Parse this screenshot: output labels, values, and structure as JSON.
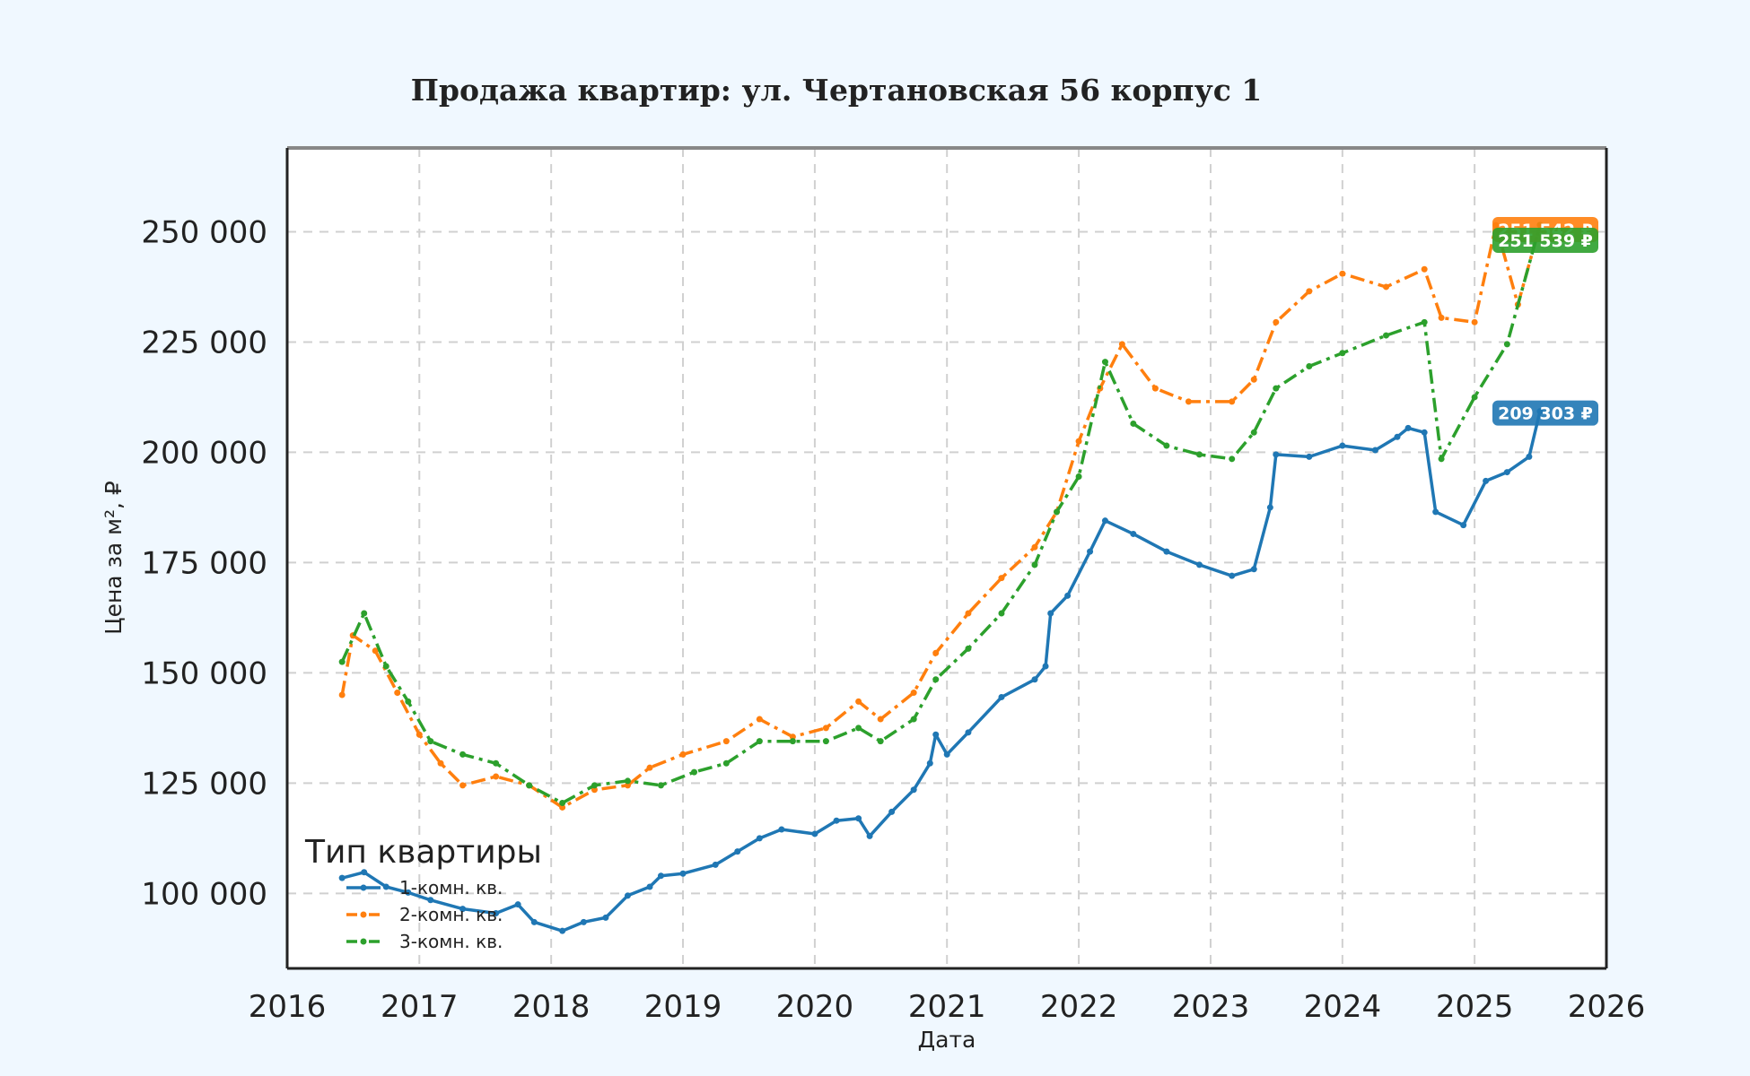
{
  "chart_data": {
    "type": "line",
    "title": "Продажа квартир: ул. Чертановская 56 корпус 1",
    "xlabel": "Дата",
    "ylabel": "Цена за м², ₽",
    "xlim": [
      "2016-01-01",
      "2026-01-01"
    ],
    "ylim": [
      83000,
      269000
    ],
    "x_ticks": [
      "2016",
      "2017",
      "2018",
      "2019",
      "2020",
      "2021",
      "2022",
      "2023",
      "2024",
      "2025",
      "2026"
    ],
    "y_ticks": [
      100000,
      125000,
      150000,
      175000,
      200000,
      225000,
      250000
    ],
    "y_tick_labels": [
      "100 000",
      "125 000",
      "150 000",
      "175 000",
      "200 000",
      "225 000",
      "250 000"
    ],
    "grid": true,
    "legend": {
      "title": "Тип квартиры",
      "placement": "bottom-left"
    },
    "series": [
      {
        "name": "1-комн. кв.",
        "color": "#1f77b4",
        "style": "solid",
        "last_label": "209 303 ₽",
        "points": [
          [
            "2016-06-01",
            103500
          ],
          [
            "2016-08-01",
            104800
          ],
          [
            "2016-10-01",
            101500
          ],
          [
            "2016-12-01",
            100200
          ],
          [
            "2017-02-01",
            98500
          ],
          [
            "2017-05-01",
            96500
          ],
          [
            "2017-08-01",
            95500
          ],
          [
            "2017-10-01",
            97500
          ],
          [
            "2017-11-15",
            93500
          ],
          [
            "2018-02-01",
            91500
          ],
          [
            "2018-04-01",
            93500
          ],
          [
            "2018-06-01",
            94500
          ],
          [
            "2018-08-01",
            99500
          ],
          [
            "2018-10-01",
            101500
          ],
          [
            "2018-11-01",
            104000
          ],
          [
            "2019-01-01",
            104500
          ],
          [
            "2019-04-01",
            106500
          ],
          [
            "2019-06-01",
            109500
          ],
          [
            "2019-08-01",
            112500
          ],
          [
            "2019-10-01",
            114500
          ],
          [
            "2020-01-01",
            113500
          ],
          [
            "2020-03-01",
            116500
          ],
          [
            "2020-05-01",
            117000
          ],
          [
            "2020-06-01",
            113000
          ],
          [
            "2020-08-01",
            118500
          ],
          [
            "2020-10-01",
            123500
          ],
          [
            "2020-11-15",
            129500
          ],
          [
            "2020-12-01",
            136000
          ],
          [
            "2021-01-01",
            131500
          ],
          [
            "2021-03-01",
            136500
          ],
          [
            "2021-06-01",
            144500
          ],
          [
            "2021-09-01",
            148500
          ],
          [
            "2021-10-01",
            151500
          ],
          [
            "2021-10-15",
            163500
          ],
          [
            "2021-12-01",
            167500
          ],
          [
            "2022-02-01",
            177500
          ],
          [
            "2022-03-15",
            184500
          ],
          [
            "2022-06-01",
            181500
          ],
          [
            "2022-09-01",
            177500
          ],
          [
            "2022-12-01",
            174500
          ],
          [
            "2023-03-01",
            172000
          ],
          [
            "2023-05-01",
            173500
          ],
          [
            "2023-06-15",
            187500
          ],
          [
            "2023-07-01",
            199500
          ],
          [
            "2023-10-01",
            199000
          ],
          [
            "2024-01-01",
            201500
          ],
          [
            "2024-04-01",
            200500
          ],
          [
            "2024-06-01",
            203500
          ],
          [
            "2024-07-01",
            205500
          ],
          [
            "2024-08-15",
            204500
          ],
          [
            "2024-09-15",
            186500
          ],
          [
            "2024-12-01",
            183500
          ],
          [
            "2025-02-01",
            193500
          ],
          [
            "2025-04-01",
            195500
          ],
          [
            "2025-06-01",
            199000
          ],
          [
            "2025-07-01",
            209303
          ]
        ]
      },
      {
        "name": "2-комн. кв.",
        "color": "#ff7f0e",
        "style": "dashdot",
        "last_label": "251 542 ₽",
        "points": [
          [
            "2016-06-01",
            145000
          ],
          [
            "2016-07-01",
            158500
          ],
          [
            "2016-09-01",
            155000
          ],
          [
            "2016-11-01",
            145500
          ],
          [
            "2017-01-01",
            136000
          ],
          [
            "2017-03-01",
            129500
          ],
          [
            "2017-05-01",
            124500
          ],
          [
            "2017-08-01",
            126500
          ],
          [
            "2017-11-01",
            124500
          ],
          [
            "2018-02-01",
            119500
          ],
          [
            "2018-05-01",
            123500
          ],
          [
            "2018-08-01",
            124500
          ],
          [
            "2018-10-01",
            128500
          ],
          [
            "2019-01-01",
            131500
          ],
          [
            "2019-05-01",
            134500
          ],
          [
            "2019-08-01",
            139500
          ],
          [
            "2019-11-01",
            135500
          ],
          [
            "2020-02-01",
            137500
          ],
          [
            "2020-05-01",
            143500
          ],
          [
            "2020-07-01",
            139500
          ],
          [
            "2020-10-01",
            145500
          ],
          [
            "2020-12-01",
            154500
          ],
          [
            "2021-03-01",
            163500
          ],
          [
            "2021-06-01",
            171500
          ],
          [
            "2021-09-01",
            178500
          ],
          [
            "2021-11-01",
            186500
          ],
          [
            "2022-01-01",
            202500
          ],
          [
            "2022-03-01",
            214500
          ],
          [
            "2022-05-01",
            224500
          ],
          [
            "2022-08-01",
            214500
          ],
          [
            "2022-11-01",
            211500
          ],
          [
            "2023-03-01",
            211500
          ],
          [
            "2023-05-01",
            216500
          ],
          [
            "2023-07-01",
            229500
          ],
          [
            "2023-10-01",
            236500
          ],
          [
            "2024-01-01",
            240500
          ],
          [
            "2024-05-01",
            237500
          ],
          [
            "2024-08-15",
            241500
          ],
          [
            "2024-10-01",
            230500
          ],
          [
            "2025-01-01",
            229500
          ],
          [
            "2025-03-01",
            251500
          ],
          [
            "2025-05-01",
            233500
          ],
          [
            "2025-07-01",
            251542
          ]
        ]
      },
      {
        "name": "3-комн. кв.",
        "color": "#2ca02c",
        "style": "dashdot",
        "last_label": "251 539 ₽",
        "points": [
          [
            "2016-06-01",
            152500
          ],
          [
            "2016-08-01",
            163500
          ],
          [
            "2016-10-01",
            151500
          ],
          [
            "2016-12-01",
            143500
          ],
          [
            "2017-02-01",
            134500
          ],
          [
            "2017-05-01",
            131500
          ],
          [
            "2017-08-01",
            129500
          ],
          [
            "2017-11-01",
            124500
          ],
          [
            "2018-02-01",
            120500
          ],
          [
            "2018-05-01",
            124500
          ],
          [
            "2018-08-01",
            125500
          ],
          [
            "2018-11-01",
            124500
          ],
          [
            "2019-02-01",
            127500
          ],
          [
            "2019-05-01",
            129500
          ],
          [
            "2019-08-01",
            134500
          ],
          [
            "2019-11-01",
            134500
          ],
          [
            "2020-02-01",
            134500
          ],
          [
            "2020-05-01",
            137500
          ],
          [
            "2020-07-01",
            134500
          ],
          [
            "2020-10-01",
            139500
          ],
          [
            "2020-12-01",
            148500
          ],
          [
            "2021-03-01",
            155500
          ],
          [
            "2021-06-01",
            163500
          ],
          [
            "2021-09-01",
            174500
          ],
          [
            "2021-11-01",
            186500
          ],
          [
            "2022-01-01",
            194500
          ],
          [
            "2022-03-15",
            220500
          ],
          [
            "2022-06-01",
            206500
          ],
          [
            "2022-09-01",
            201500
          ],
          [
            "2022-12-01",
            199500
          ],
          [
            "2023-03-01",
            198500
          ],
          [
            "2023-05-01",
            204500
          ],
          [
            "2023-07-01",
            214500
          ],
          [
            "2023-10-01",
            219500
          ],
          [
            "2024-01-01",
            222500
          ],
          [
            "2024-05-01",
            226500
          ],
          [
            "2024-08-15",
            229500
          ],
          [
            "2024-10-01",
            198500
          ],
          [
            "2025-01-01",
            212500
          ],
          [
            "2025-04-01",
            224500
          ],
          [
            "2025-07-01",
            251539
          ]
        ]
      }
    ]
  }
}
